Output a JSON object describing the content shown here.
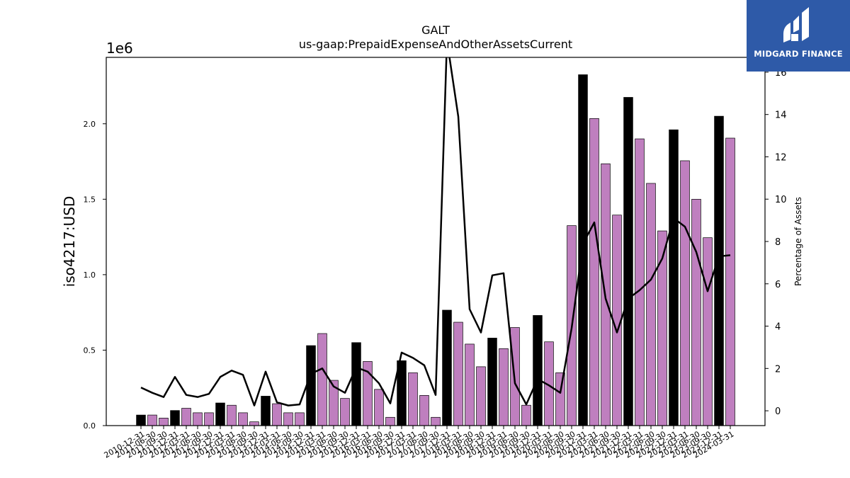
{
  "chart_data": {
    "type": "bar",
    "title": "GALT",
    "subtitle": "us-gaap:PrepaidExpenseAndOtherAssetsCurrent",
    "ylabel": "iso4217:USD",
    "y_offset_label": "1e6",
    "y2label": "Percentage of Assets",
    "ylim": [
      0,
      2.44
    ],
    "y2lim": [
      -0.7,
      16.7
    ],
    "yticks": [
      "0.0",
      "0.5",
      "1.0",
      "1.5",
      "2.0"
    ],
    "y2ticks": [
      "0",
      "2",
      "4",
      "6",
      "8",
      "10",
      "12",
      "14",
      "16"
    ],
    "grid": false,
    "colors": {
      "annual": "#000000",
      "quarterly": "#bf7fbf",
      "line": "#000000"
    },
    "categories": [
      "2010-12-31",
      "2011-06-30",
      "2011-09-30",
      "2011-12-31",
      "2012-03-31",
      "2012-06-30",
      "2012-09-30",
      "2012-12-31",
      "2013-03-31",
      "2013-06-30",
      "2013-09-30",
      "2013-12-31",
      "2014-03-31",
      "2014-06-30",
      "2014-09-30",
      "2014-12-31",
      "2015-03-31",
      "2015-06-30",
      "2015-09-30",
      "2015-12-31",
      "2016-03-31",
      "2016-06-30",
      "2016-09-30",
      "2016-12-31",
      "2017-03-31",
      "2017-06-30",
      "2017-09-30",
      "2017-12-31",
      "2018-03-31",
      "2018-06-30",
      "2018-09-30",
      "2018-12-31",
      "2019-03-31",
      "2019-06-30",
      "2019-09-30",
      "2019-12-31",
      "2020-03-31",
      "2020-06-30",
      "2020-09-30",
      "2020-12-31",
      "2021-03-31",
      "2021-06-30",
      "2021-09-30",
      "2021-12-31",
      "2022-03-31",
      "2022-06-30",
      "2022-09-30",
      "2022-12-31",
      "2023-03-31",
      "2023-06-30",
      "2023-09-30",
      "2023-12-31",
      "2024-03-31"
    ],
    "series": [
      {
        "kind": "bar",
        "values": [
          0.07,
          0.07,
          0.05,
          0.1,
          0.115,
          0.085,
          0.085,
          0.15,
          0.135,
          0.085,
          0.025,
          0.195,
          0.145,
          0.085,
          0.085,
          0.53,
          0.61,
          0.3,
          0.18,
          0.55,
          0.425,
          0.24,
          0.055,
          0.43,
          0.35,
          0.2,
          0.055,
          0.765,
          0.685,
          0.54,
          0.39,
          0.58,
          0.51,
          0.65,
          0.135,
          0.73,
          0.555,
          0.35,
          1.325,
          2.325,
          2.035,
          1.735,
          1.395,
          2.175,
          1.9,
          1.605,
          1.29,
          1.96,
          1.755,
          1.5,
          1.245,
          2.05,
          1.905
        ],
        "annual": [
          true,
          false,
          false,
          true,
          false,
          false,
          false,
          true,
          false,
          false,
          false,
          true,
          false,
          false,
          false,
          true,
          false,
          false,
          false,
          true,
          false,
          false,
          false,
          true,
          false,
          false,
          false,
          true,
          false,
          false,
          false,
          true,
          false,
          false,
          false,
          true,
          false,
          false,
          false,
          true,
          false,
          false,
          false,
          true,
          false,
          false,
          false,
          true,
          false,
          false,
          false,
          true,
          false
        ]
      },
      {
        "kind": "line",
        "axis": "right",
        "values": [
          1.1,
          0.85,
          0.65,
          1.6,
          0.75,
          0.65,
          0.8,
          1.6,
          1.9,
          1.7,
          0.25,
          1.85,
          0.4,
          0.25,
          0.3,
          1.75,
          2.0,
          1.15,
          0.85,
          2.05,
          1.85,
          1.3,
          0.35,
          2.75,
          2.5,
          2.15,
          0.75,
          17.5,
          13.9,
          4.8,
          3.7,
          6.4,
          6.5,
          1.3,
          0.3,
          1.5,
          1.2,
          0.85,
          3.9,
          7.9,
          8.9,
          5.3,
          3.7,
          5.3,
          5.7,
          6.2,
          7.2,
          9.1,
          8.7,
          7.5,
          5.65,
          7.3,
          7.35
        ]
      }
    ]
  },
  "logo": {
    "text": "MIDGARD FINANCE"
  }
}
